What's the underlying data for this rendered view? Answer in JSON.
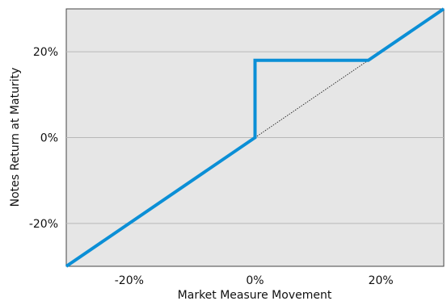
{
  "chart_data": {
    "type": "line",
    "xlabel": "Market Measure Movement",
    "ylabel": "Notes Return at Maturity",
    "xlim": [
      -30,
      30
    ],
    "ylim": [
      -30,
      30
    ],
    "xticks": [
      -20,
      0,
      20
    ],
    "yticks": [
      -20,
      0,
      20
    ],
    "xtick_labels": [
      "-20%",
      "0%",
      "20%"
    ],
    "ytick_labels": [
      "-20%",
      "0%",
      "20%"
    ],
    "grid": "horizontal",
    "legend": "none",
    "series": [
      {
        "style": "solid",
        "color": "#0b8fd6",
        "points": [
          [
            -30,
            -30
          ],
          [
            0,
            0
          ],
          [
            0,
            18
          ],
          [
            18,
            18
          ],
          [
            30,
            30
          ]
        ]
      },
      {
        "style": "dotted",
        "color": "#333333",
        "points": [
          [
            0,
            0
          ],
          [
            18,
            18
          ]
        ]
      }
    ],
    "plot_background": "#e6e6e6"
  }
}
